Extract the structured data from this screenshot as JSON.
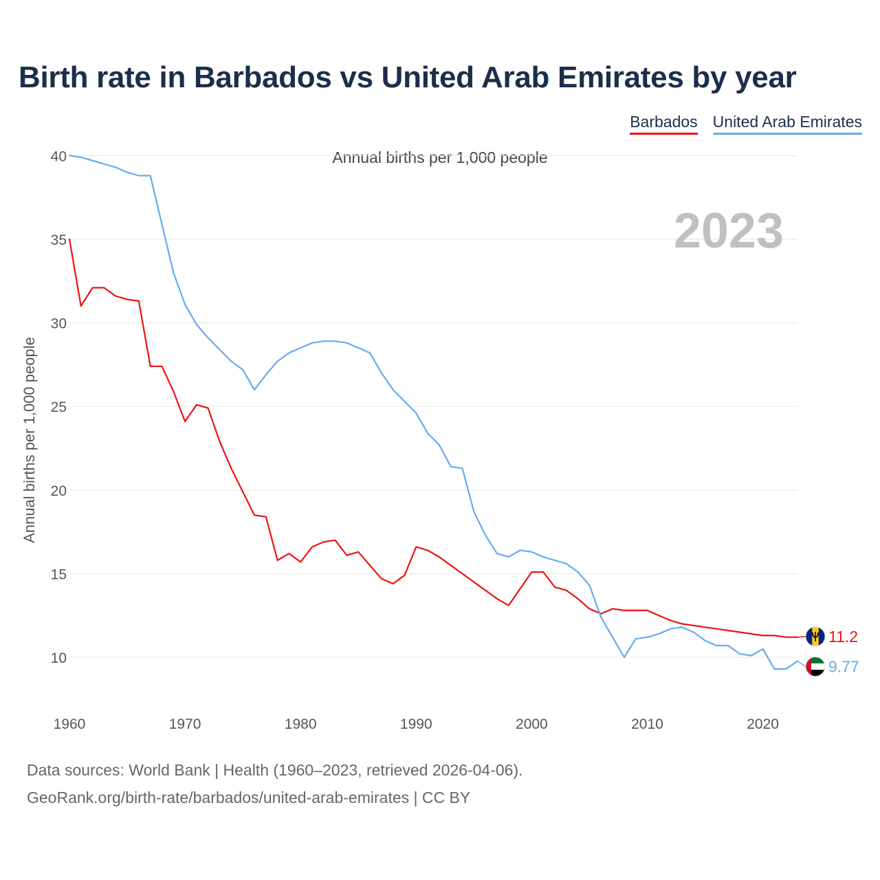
{
  "header": {
    "title": "Birth rate in Barbados vs United Arab Emirates by year",
    "subtitle": "Annual births per 1,000 people"
  },
  "legend": [
    {
      "label": "Barbados",
      "color": "#ee1111"
    },
    {
      "label": "United Arab Emirates",
      "color": "#66aaee"
    }
  ],
  "footer": {
    "line1": "Data sources: World Bank | Health (1960–2023, retrieved 2026-04-06).",
    "line2": "GeoRank.org/birth-rate/barbados/united-arab-emirates | CC BY"
  },
  "chart_data": {
    "type": "line",
    "title": "Birth rate in Barbados vs United Arab Emirates by year",
    "ylabel": "Annual births per 1,000 people",
    "xlabel": "",
    "year_label": "2023",
    "xlim": [
      1960,
      2023
    ],
    "ylim": [
      7,
      41
    ],
    "x_ticks": [
      1960,
      1970,
      1980,
      1990,
      2000,
      2010,
      2020
    ],
    "y_ticks": [
      10,
      15,
      20,
      25,
      30,
      35,
      40
    ],
    "grid": true,
    "legend_position": "top-right",
    "x": [
      1960,
      1961,
      1962,
      1963,
      1964,
      1965,
      1966,
      1967,
      1968,
      1969,
      1970,
      1971,
      1972,
      1973,
      1974,
      1975,
      1976,
      1977,
      1978,
      1979,
      1980,
      1981,
      1982,
      1983,
      1984,
      1985,
      1986,
      1987,
      1988,
      1989,
      1990,
      1991,
      1992,
      1993,
      1994,
      1995,
      1996,
      1997,
      1998,
      1999,
      2000,
      2001,
      2002,
      2003,
      2004,
      2005,
      2006,
      2007,
      2008,
      2009,
      2010,
      2011,
      2012,
      2013,
      2014,
      2015,
      2016,
      2017,
      2018,
      2019,
      2020,
      2021,
      2022,
      2023
    ],
    "series": [
      {
        "name": "Barbados",
        "color": "#ee1111",
        "end_label": "11.2",
        "flag": "barbados-flag-icon",
        "values": [
          35.0,
          31.0,
          32.1,
          32.1,
          31.6,
          31.4,
          31.3,
          27.4,
          27.4,
          25.9,
          24.1,
          25.1,
          24.9,
          22.9,
          21.3,
          19.9,
          18.5,
          18.4,
          15.8,
          16.2,
          15.7,
          16.6,
          16.9,
          17.0,
          16.1,
          16.3,
          15.5,
          14.7,
          14.4,
          14.9,
          16.6,
          16.4,
          16.0,
          15.5,
          15.0,
          14.5,
          14.0,
          13.5,
          13.1,
          14.1,
          15.1,
          15.1,
          14.2,
          14.0,
          13.5,
          12.9,
          12.6,
          12.9,
          12.8,
          12.8,
          12.8,
          12.5,
          12.2,
          12.0,
          11.9,
          11.8,
          11.7,
          11.6,
          11.5,
          11.4,
          11.3,
          11.3,
          11.2,
          11.2
        ]
      },
      {
        "name": "United Arab Emirates",
        "color": "#66aaee",
        "end_label": "9.77",
        "flag": "uae-flag-icon",
        "values": [
          40.0,
          39.9,
          39.7,
          39.5,
          39.3,
          39.0,
          38.8,
          38.8,
          35.9,
          33.0,
          31.1,
          29.9,
          29.1,
          28.4,
          27.7,
          27.2,
          26.0,
          26.9,
          27.7,
          28.2,
          28.5,
          28.8,
          28.9,
          28.9,
          28.8,
          28.5,
          28.2,
          27.0,
          26.0,
          25.3,
          24.6,
          23.4,
          22.7,
          21.4,
          21.3,
          18.7,
          17.3,
          16.2,
          16.0,
          16.4,
          16.3,
          16.0,
          15.8,
          15.6,
          15.1,
          14.3,
          12.4,
          11.2,
          10.0,
          11.1,
          11.2,
          11.4,
          11.7,
          11.8,
          11.5,
          11.0,
          10.7,
          10.7,
          10.2,
          10.1,
          10.5,
          9.3,
          9.3,
          9.77
        ]
      }
    ]
  }
}
